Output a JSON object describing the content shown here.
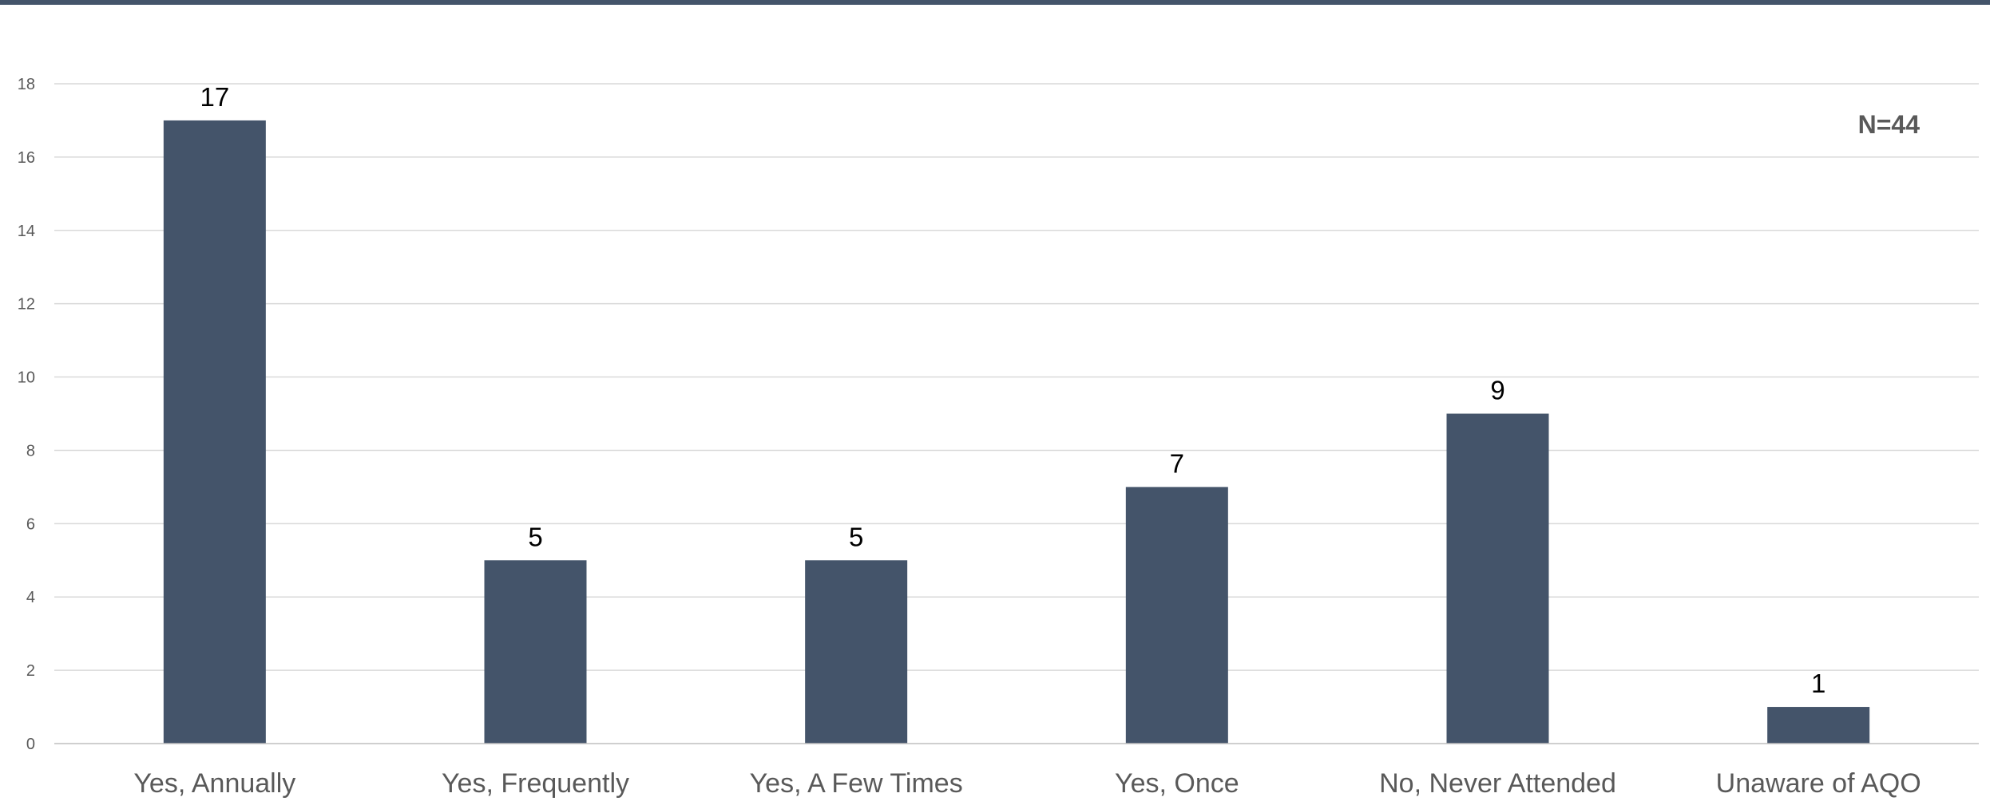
{
  "chart_data": {
    "type": "bar",
    "categories": [
      "Yes, Annually",
      "Yes, Frequently",
      "Yes, A Few Times",
      "Yes, Once",
      "No, Never Attended",
      "Unaware of AQO"
    ],
    "values": [
      17,
      5,
      5,
      7,
      9,
      1
    ],
    "ylim": [
      0,
      18
    ],
    "ytick_step": 2,
    "grid": true,
    "annotation": "N=44",
    "annotation_position": "top-right",
    "colors": {
      "bar": "#44546a",
      "grid": "#d9d9d9",
      "axis": "#bfbfbf",
      "top_bar": "#44546a"
    }
  }
}
